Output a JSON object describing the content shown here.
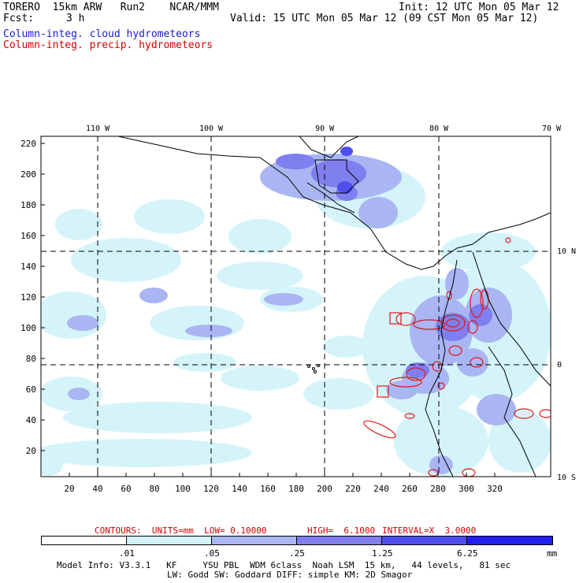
{
  "header": {
    "model": "TORERO  15km ARW   Run2    NCAR/MMM",
    "init": "Init: 12 UTC Mon 05 Mar 12",
    "fcst_label": "Fcst:",
    "fcst_value": "3 h",
    "valid": "Valid: 15 UTC Mon 05 Mar 12 (09 CST Mon 05 Mar 12)",
    "field1": "Column-integ. cloud hydrometeors",
    "field2": "Column-integ. precip. hydrometeors"
  },
  "map": {
    "lon_labels": [
      "110 W",
      "100 W",
      "90 W",
      "80 W",
      "70 W"
    ],
    "lat_labels": [
      "10 N",
      "0",
      "10 S"
    ],
    "y_ticks": [
      "220",
      "200",
      "180",
      "160",
      "140",
      "120",
      "100",
      "80",
      "60",
      "40",
      "20"
    ],
    "x_ticks": [
      "20",
      "40",
      "60",
      "80",
      "100",
      "120",
      "140",
      "160",
      "180",
      "200",
      "220",
      "240",
      "260",
      "280",
      "300",
      "320"
    ]
  },
  "contours_note": {
    "prefix": "CONTOURS:  UNITS=mm  LOW= 0.10000",
    "high": "HIGH=  6.1000",
    "interval": "INTERVAL=X  3.0000"
  },
  "colorbar": {
    "labels": [
      ".01",
      ".05",
      ".25",
      "1.25",
      "6.25"
    ],
    "unit": "mm",
    "colors": [
      "#ffffff",
      "#d4f4fa",
      "#a9b6f3",
      "#7f7ff0",
      "#4f4ff0",
      "#2020ee"
    ]
  },
  "footer": {
    "line1": "Model Info: V3.3.1   KF     YSU PBL  WDM 6class  Noah LSM  15 km,   44 levels,   81 sec",
    "line2": "LW: Godd SW: Goddard DIFF: simple KM: 2D Smagor"
  }
}
